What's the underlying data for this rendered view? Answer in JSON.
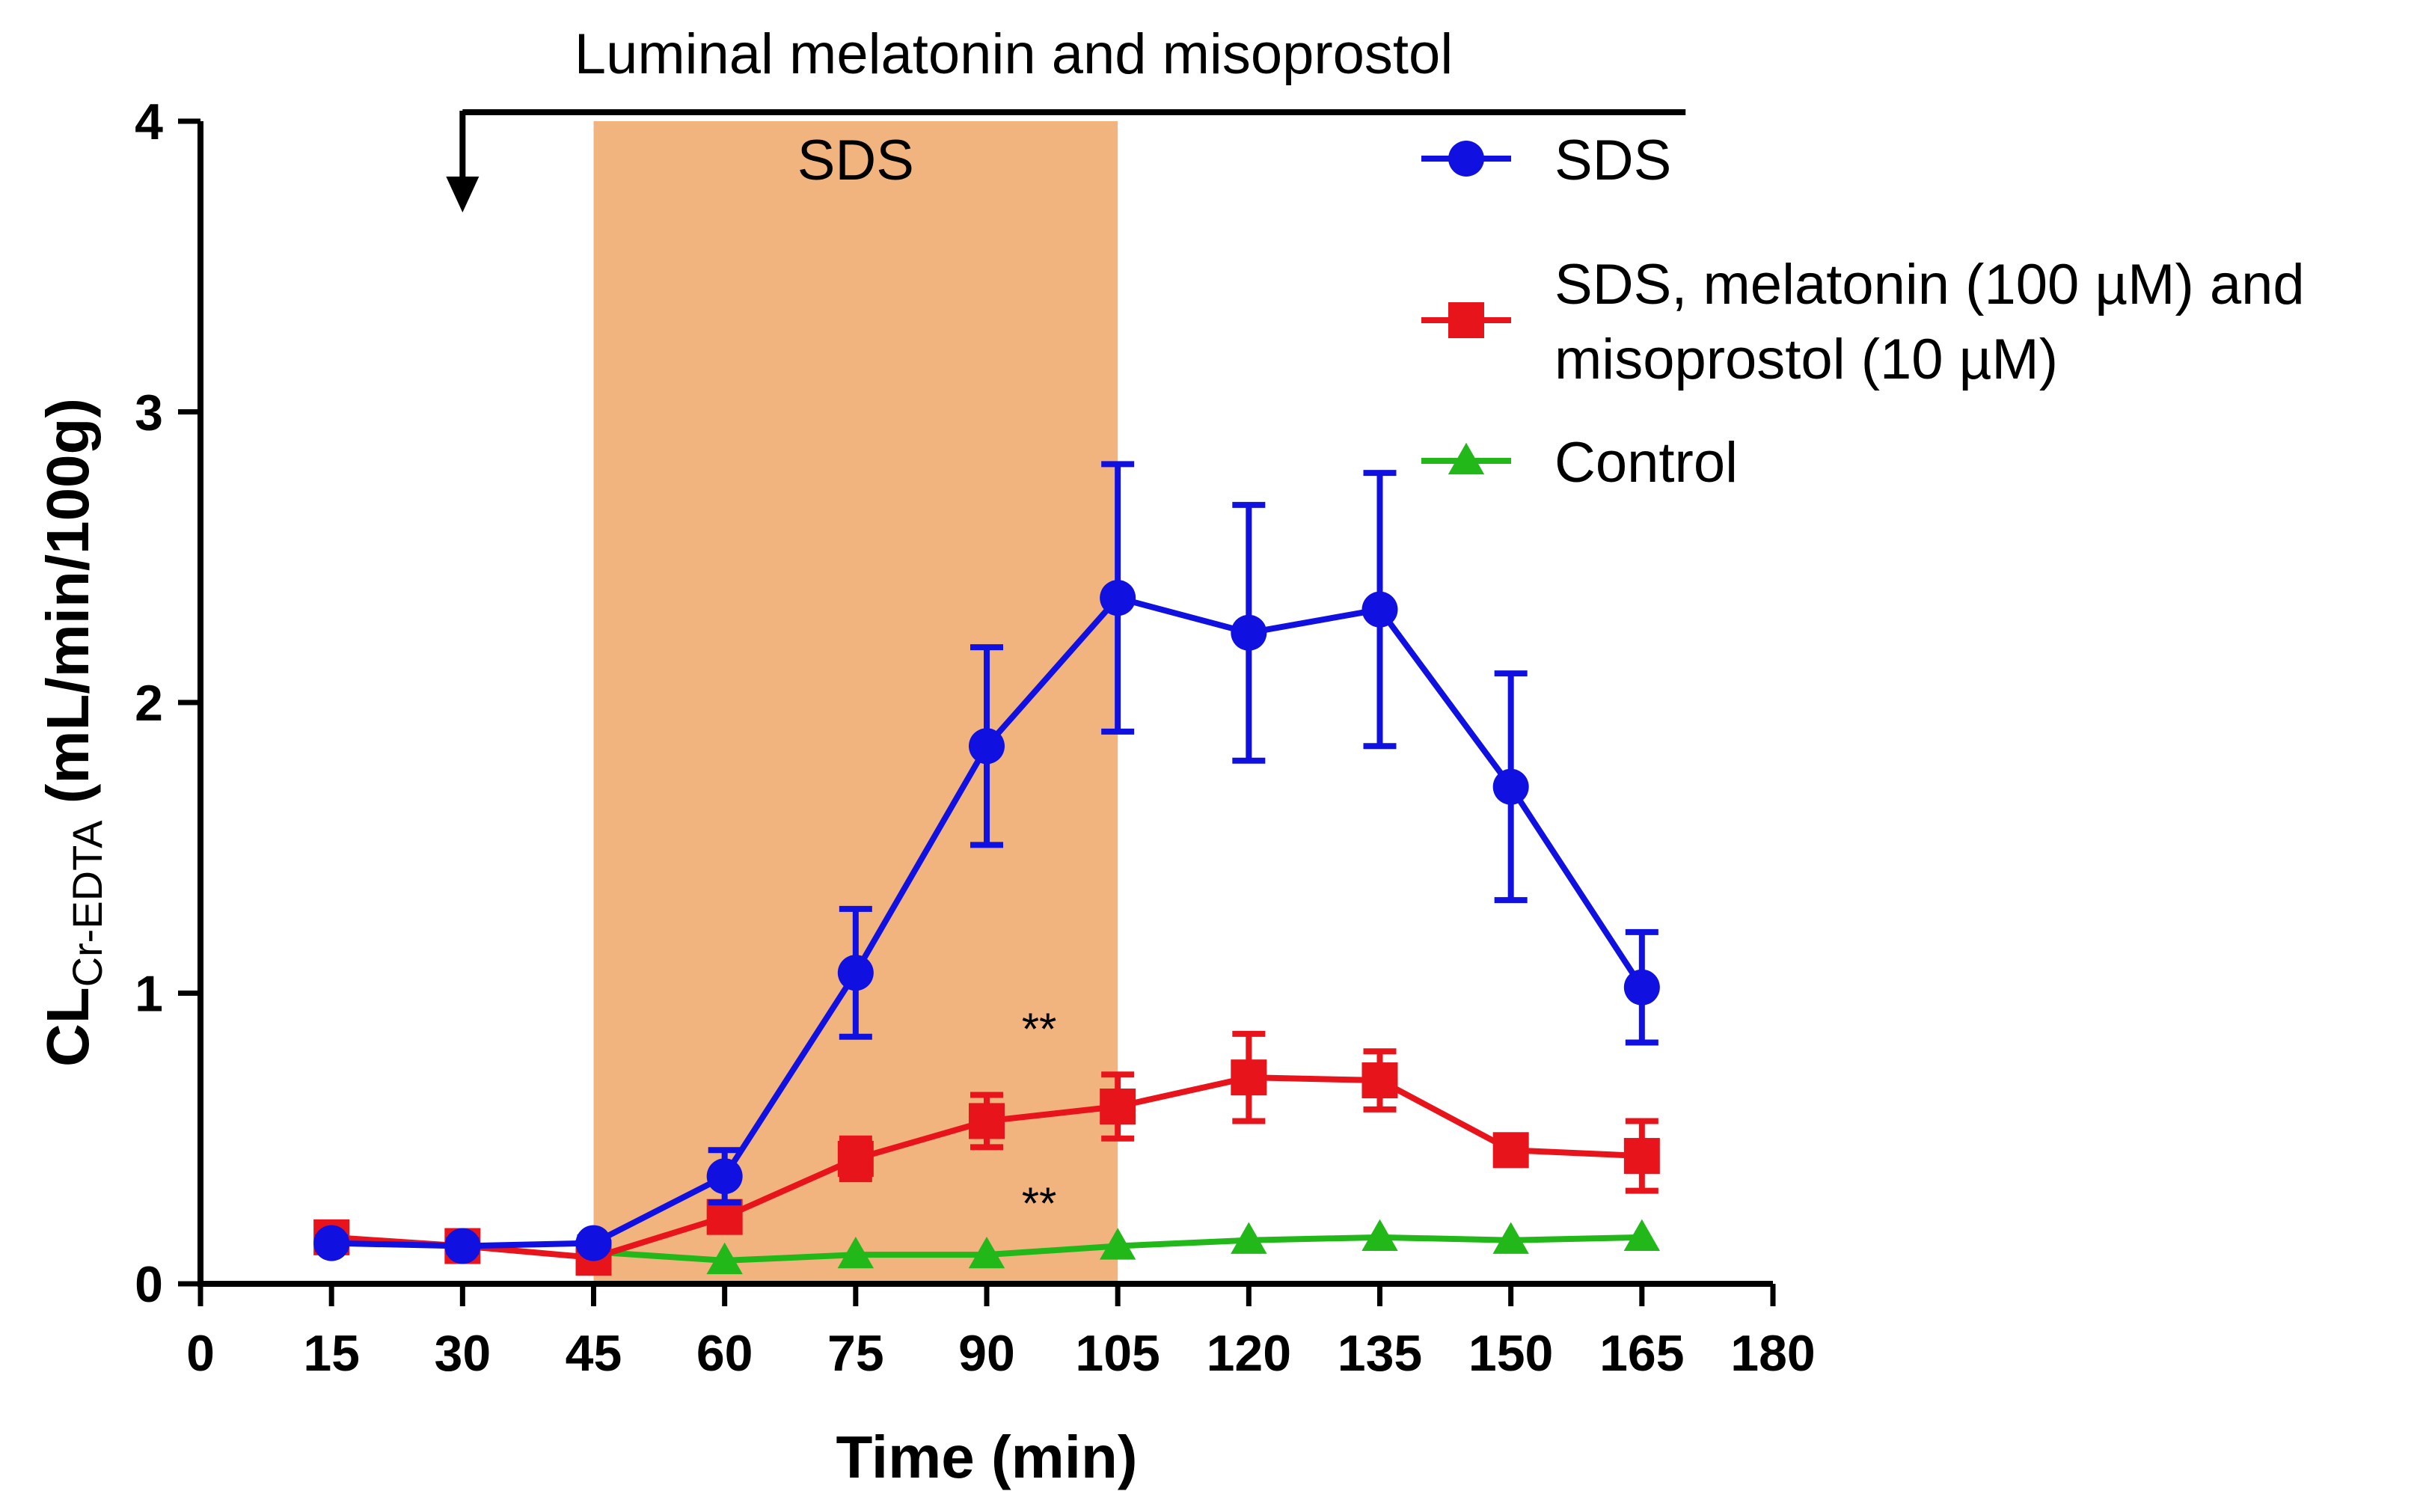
{
  "chart_data": {
    "type": "line",
    "title": "",
    "xlabel": "Time (min)",
    "ylabel": {
      "main": "CL",
      "subscript": "Cr-EDTA",
      "units": " (mL/min/100g)"
    },
    "xlim": [
      0,
      180
    ],
    "ylim": [
      0,
      4
    ],
    "xticks": [
      0,
      15,
      30,
      45,
      60,
      75,
      90,
      105,
      120,
      135,
      150,
      165,
      180
    ],
    "yticks": [
      0,
      1,
      2,
      3,
      4
    ],
    "grid": false,
    "legend_position": "top-right",
    "treatment_label": "Luminal melatonin and misoprostol",
    "treatment_start": 30,
    "treatment_end": 170,
    "shaded_region": {
      "label": "SDS",
      "x_start": 45,
      "x_end": 105,
      "color": "#F2B47E"
    },
    "significance_marks": [
      {
        "text": "**",
        "x": 96,
        "y": 0.88
      },
      {
        "text": "**",
        "x": 96,
        "y": 0.28
      }
    ],
    "series": [
      {
        "name": "SDS",
        "legend_label": [
          "SDS"
        ],
        "color": "#1010E0",
        "marker": "circle",
        "x": [
          15,
          30,
          45,
          60,
          75,
          90,
          105,
          120,
          135,
          150,
          165
        ],
        "y": [
          0.14,
          0.13,
          0.14,
          0.37,
          1.07,
          1.85,
          2.36,
          2.24,
          2.32,
          1.71,
          1.02
        ],
        "error": [
          0.02,
          0.02,
          0.02,
          0.09,
          0.22,
          0.34,
          0.46,
          0.44,
          0.47,
          0.39,
          0.19
        ]
      },
      {
        "name": "SDS, melatonin (100 µM) and misoprostol (10 µM)",
        "legend_label": [
          "SDS, melatonin (100 µM) and",
          "misoprostol (10 µM)"
        ],
        "color": "#E8141C",
        "marker": "square",
        "x": [
          15,
          30,
          45,
          60,
          75,
          90,
          105,
          120,
          135,
          150,
          165
        ],
        "y": [
          0.16,
          0.13,
          0.09,
          0.23,
          0.43,
          0.56,
          0.61,
          0.71,
          0.7,
          0.46,
          0.44
        ],
        "error": [
          0.02,
          0.02,
          0.02,
          0.05,
          0.07,
          0.09,
          0.11,
          0.15,
          0.1,
          0.05,
          0.12
        ]
      },
      {
        "name": "Control",
        "legend_label": [
          "Control"
        ],
        "color": "#22B81A",
        "marker": "triangle",
        "x": [
          45,
          60,
          75,
          90,
          105,
          120,
          135,
          150,
          165
        ],
        "y": [
          0.11,
          0.08,
          0.1,
          0.1,
          0.13,
          0.15,
          0.16,
          0.15,
          0.16
        ],
        "error": [
          0,
          0,
          0,
          0,
          0,
          0,
          0,
          0,
          0
        ]
      }
    ]
  }
}
